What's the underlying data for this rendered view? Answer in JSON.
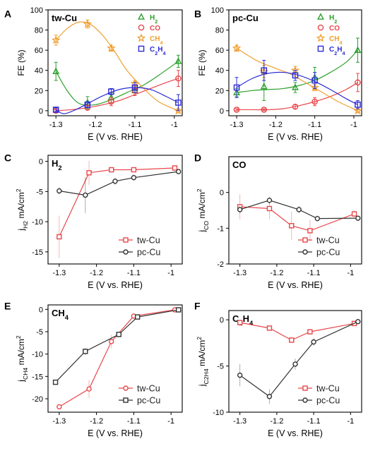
{
  "colors": {
    "h2": "#2ca02c",
    "co": "#e8474b",
    "ch4": "#f0a030",
    "c2h4": "#2b2bd6",
    "tw": "#e8474b",
    "pc": "#333333"
  },
  "chart_data": [
    {
      "panel": "A",
      "type": "scatter",
      "title": "tw-Cu",
      "xlabel": "E (V vs. RHE)",
      "ylabel": "FE (%)",
      "xlim": [
        -1.32,
        -0.98
      ],
      "ylim": [
        -5,
        100
      ],
      "xticks": [
        -1.3,
        -1.2,
        -1.1,
        -1.0
      ],
      "xtick_labels": [
        "-1.3",
        "-1.2",
        "-1.1",
        "-1"
      ],
      "yticks": [
        0,
        20,
        40,
        60,
        80,
        100
      ],
      "ytick_labels": [
        "0",
        "20",
        "40",
        "60",
        "80",
        "100"
      ],
      "legend": "top-right",
      "x": [
        -1.3,
        -1.22,
        -1.16,
        -1.1,
        -0.99
      ],
      "series": [
        {
          "name": "H₂",
          "color_key": "h2",
          "marker": "triangle",
          "values": [
            39,
            8,
            13,
            20,
            49
          ],
          "errors": [
            9,
            6,
            5,
            5,
            6
          ],
          "fit": [
            [
              -1.3,
              39
            ],
            [
              -1.27,
              19
            ],
            [
              -1.24,
              7
            ],
            [
              -1.2,
              6
            ],
            [
              -1.16,
              11
            ],
            [
              -1.12,
              18
            ],
            [
              -1.08,
              25
            ],
            [
              -1.04,
              35
            ],
            [
              -0.99,
              49
            ]
          ]
        },
        {
          "name": "CO",
          "color_key": "co",
          "marker": "circle",
          "values": [
            0,
            3,
            9,
            20,
            32
          ],
          "errors": [
            1,
            2,
            4,
            5,
            8
          ],
          "fit": [
            [
              -1.3,
              0
            ],
            [
              -1.26,
              1
            ],
            [
              -1.22,
              3
            ],
            [
              -1.18,
              6
            ],
            [
              -1.14,
              10
            ],
            [
              -1.1,
              16
            ],
            [
              -1.06,
              22
            ],
            [
              -1.02,
              28
            ],
            [
              -0.99,
              32
            ]
          ]
        },
        {
          "name": "CH₄",
          "color_key": "ch4",
          "marker": "star",
          "values": [
            70,
            86,
            62,
            27,
            0
          ],
          "errors": [
            5,
            4,
            3,
            3,
            2
          ],
          "fit": [
            [
              -1.3,
              70
            ],
            [
              -1.27,
              82
            ],
            [
              -1.24,
              88
            ],
            [
              -1.21,
              85
            ],
            [
              -1.18,
              74
            ],
            [
              -1.15,
              58
            ],
            [
              -1.12,
              40
            ],
            [
              -1.08,
              23
            ],
            [
              -1.04,
              9
            ],
            [
              -0.99,
              0
            ]
          ]
        },
        {
          "name": "C₂H₄",
          "color_key": "c2h4",
          "marker": "square",
          "values": [
            1,
            6,
            19,
            23,
            8
          ],
          "errors": [
            2,
            3,
            3,
            5,
            8
          ],
          "fit": [
            [
              -1.3,
              1
            ],
            [
              -1.28,
              -3
            ],
            [
              -1.25,
              1
            ],
            [
              -1.22,
              7
            ],
            [
              -1.18,
              15
            ],
            [
              -1.14,
              21
            ],
            [
              -1.1,
              23
            ],
            [
              -1.06,
              21
            ],
            [
              -1.02,
              14
            ],
            [
              -0.99,
              8
            ]
          ]
        }
      ]
    },
    {
      "panel": "B",
      "type": "scatter",
      "title": "pc-Cu",
      "xlabel": "E (V vs. RHE)",
      "ylabel": "FE (%)",
      "xlim": [
        -1.32,
        -0.98
      ],
      "ylim": [
        -5,
        100
      ],
      "xticks": [
        -1.3,
        -1.2,
        -1.1,
        -1.0
      ],
      "xtick_labels": [
        "-1.3",
        "-1.2",
        "-1.1",
        "-1"
      ],
      "yticks": [
        0,
        20,
        40,
        60,
        80,
        100
      ],
      "ytick_labels": [
        "0",
        "20",
        "40",
        "60",
        "80",
        "100"
      ],
      "legend": "top-right",
      "x": [
        -1.3,
        -1.23,
        -1.15,
        -1.1,
        -0.99
      ],
      "series": [
        {
          "name": "H₂",
          "color_key": "h2",
          "marker": "triangle",
          "values": [
            18,
            24,
            23,
            33,
            60
          ],
          "errors": [
            4,
            14,
            5,
            10,
            12
          ],
          "fit": [
            [
              -1.3,
              18
            ],
            [
              -1.26,
              20
            ],
            [
              -1.22,
              21
            ],
            [
              -1.18,
              22
            ],
            [
              -1.14,
              25
            ],
            [
              -1.1,
              30
            ],
            [
              -1.06,
              38
            ],
            [
              -1.02,
              48
            ],
            [
              -0.99,
              60
            ]
          ]
        },
        {
          "name": "CO",
          "color_key": "co",
          "marker": "circle",
          "values": [
            1,
            1,
            4,
            9,
            28
          ],
          "errors": [
            1,
            1,
            2,
            4,
            9
          ],
          "fit": [
            [
              -1.3,
              1
            ],
            [
              -1.26,
              1
            ],
            [
              -1.22,
              1
            ],
            [
              -1.18,
              2
            ],
            [
              -1.14,
              5
            ],
            [
              -1.1,
              9
            ],
            [
              -1.06,
              14
            ],
            [
              -1.02,
              21
            ],
            [
              -0.99,
              28
            ]
          ]
        },
        {
          "name": "CH₄",
          "color_key": "ch4",
          "marker": "star",
          "values": [
            62,
            39,
            40,
            23,
            0
          ],
          "errors": [
            3,
            6,
            4,
            3,
            1
          ],
          "fit": [
            [
              -1.3,
              62
            ],
            [
              -1.25,
              50
            ],
            [
              -1.2,
              42
            ],
            [
              -1.16,
              36
            ],
            [
              -1.12,
              27
            ],
            [
              -1.08,
              18
            ],
            [
              -1.04,
              9
            ],
            [
              -0.99,
              0
            ]
          ]
        },
        {
          "name": "C₂H₄",
          "color_key": "c2h4",
          "marker": "square",
          "values": [
            23,
            40,
            35,
            30,
            6
          ],
          "errors": [
            10,
            10,
            5,
            8,
            4
          ],
          "fit": [
            [
              -1.3,
              23
            ],
            [
              -1.26,
              32
            ],
            [
              -1.22,
              37
            ],
            [
              -1.18,
              38
            ],
            [
              -1.14,
              35
            ],
            [
              -1.1,
              29
            ],
            [
              -1.06,
              21
            ],
            [
              -1.02,
              12
            ],
            [
              -0.99,
              6
            ]
          ]
        }
      ]
    },
    {
      "panel": "C",
      "type": "line",
      "title": "H₂",
      "xlabel": "E (V vs. RHE)",
      "ylabel": "jH₂ mA/cm²",
      "xlim": [
        -1.33,
        -0.97
      ],
      "ylim": [
        -17,
        1
      ],
      "xticks": [
        -1.3,
        -1.2,
        -1.1,
        -1.0
      ],
      "xtick_labels": [
        "-1.3",
        "-1.2",
        "-1.1",
        "-1"
      ],
      "yticks": [
        0,
        -5,
        -10,
        -15
      ],
      "ytick_labels": [
        "0",
        "-5",
        "-10",
        "-15"
      ],
      "legend": "bottom-right",
      "series": [
        {
          "name": "tw-Cu",
          "color_key": "tw",
          "marker": "square",
          "x": [
            -1.3,
            -1.22,
            -1.16,
            -1.1,
            -0.99
          ],
          "values": [
            -12.5,
            -1.9,
            -1.4,
            -1.4,
            -1.1
          ],
          "errors": [
            3.5,
            2,
            0.4,
            0.3,
            0.2
          ]
        },
        {
          "name": "pc-Cu",
          "color_key": "pc",
          "marker": "circle",
          "x": [
            -1.3,
            -1.23,
            -1.15,
            -1.1,
            -0.98
          ],
          "values": [
            -4.9,
            -5.6,
            -3.3,
            -2.7,
            -1.7
          ],
          "errors": [
            0.6,
            3,
            0.6,
            0.5,
            0.3
          ]
        }
      ]
    },
    {
      "panel": "D",
      "type": "line",
      "title": "CO",
      "xlabel": "E (V vs. RHE)",
      "ylabel": "jCO mA/cm²",
      "xlim": [
        -1.33,
        -0.97
      ],
      "ylim": [
        -2,
        1
      ],
      "xticks": [
        -1.3,
        -1.2,
        -1.1,
        -1.0
      ],
      "xtick_labels": [
        "-1.3",
        "-1.2",
        "-1.1",
        "-1"
      ],
      "yticks": [
        0,
        -1,
        -2
      ],
      "ytick_labels": [
        "0",
        "-1",
        "-2"
      ],
      "legend": "bottom-right",
      "series": [
        {
          "name": "tw-Cu",
          "color_key": "tw",
          "marker": "square",
          "x": [
            -1.3,
            -1.22,
            -1.16,
            -1.11,
            -0.99
          ],
          "values": [
            -0.4,
            -0.45,
            -0.93,
            -1.07,
            -0.6
          ],
          "errors": [
            0.35,
            0.3,
            0.4,
            0.3,
            0.1
          ]
        },
        {
          "name": "pc-Cu",
          "color_key": "pc",
          "marker": "circle",
          "x": [
            -1.3,
            -1.22,
            -1.14,
            -1.09,
            -0.98
          ],
          "values": [
            -0.48,
            -0.22,
            -0.48,
            -0.73,
            -0.72
          ],
          "errors": [
            0.1,
            0.1,
            0.1,
            0.08,
            0.05
          ]
        }
      ]
    },
    {
      "panel": "E",
      "type": "line",
      "title": "CH₄",
      "xlabel": "E (V vs. RHE)",
      "ylabel": "jCH₄ mA/cm²",
      "xlim": [
        -1.33,
        -0.97
      ],
      "ylim": [
        -23,
        1
      ],
      "xticks": [
        -1.3,
        -1.2,
        -1.1,
        -1.0
      ],
      "xtick_labels": [
        "-1.3",
        "-1.2",
        "-1.1",
        "-1"
      ],
      "yticks": [
        0,
        -5,
        -10,
        -15,
        -20
      ],
      "ytick_labels": [
        "0",
        "-5",
        "-10",
        "-15",
        "-20"
      ],
      "legend": "bottom-right",
      "series": [
        {
          "name": "tw-Cu",
          "color_key": "tw",
          "marker": "circle",
          "x": [
            -1.3,
            -1.22,
            -1.16,
            -1.1,
            -0.99
          ],
          "values": [
            -21.8,
            -17.8,
            -7.2,
            -1.5,
            -0.1
          ],
          "errors": [
            0.3,
            2,
            1.5,
            0.3,
            0.2
          ]
        },
        {
          "name": "pc-Cu",
          "color_key": "pc",
          "marker": "square",
          "x": [
            -1.31,
            -1.23,
            -1.14,
            -1.09,
            -0.98
          ],
          "values": [
            -16.3,
            -9.4,
            -5.6,
            -1.7,
            -0.1
          ],
          "errors": [
            0.2,
            0.8,
            0.5,
            0.2,
            0.1
          ]
        }
      ]
    },
    {
      "panel": "F",
      "type": "line",
      "title": "C₂H₄",
      "xlabel": "E (V vs. RHE)",
      "ylabel": "jC₂H₄ mA/cm²",
      "xlim": [
        -1.33,
        -0.97
      ],
      "ylim": [
        -10,
        1
      ],
      "xticks": [
        -1.3,
        -1.2,
        -1.1,
        -1.0
      ],
      "xtick_labels": [
        "-1.3",
        "-1.2",
        "-1.1",
        "-1"
      ],
      "yticks": [
        0,
        -5,
        -10
      ],
      "ytick_labels": [
        "0",
        "-5",
        "-10"
      ],
      "legend": "bottom-right",
      "series": [
        {
          "name": "tw-Cu",
          "color_key": "tw",
          "marker": "square",
          "x": [
            -1.3,
            -1.22,
            -1.16,
            -1.11,
            -0.99
          ],
          "values": [
            -0.3,
            -0.9,
            -2.2,
            -1.3,
            -0.4
          ],
          "errors": [
            0.3,
            0.3,
            0.3,
            0.3,
            0.3
          ]
        },
        {
          "name": "pc-Cu",
          "color_key": "pc",
          "marker": "circle",
          "x": [
            -1.3,
            -1.22,
            -1.15,
            -1.1,
            -0.98
          ],
          "values": [
            -6.0,
            -8.3,
            -4.8,
            -2.4,
            -0.2
          ],
          "errors": [
            1.2,
            0.8,
            0.6,
            0.4,
            0.2
          ]
        }
      ]
    }
  ]
}
